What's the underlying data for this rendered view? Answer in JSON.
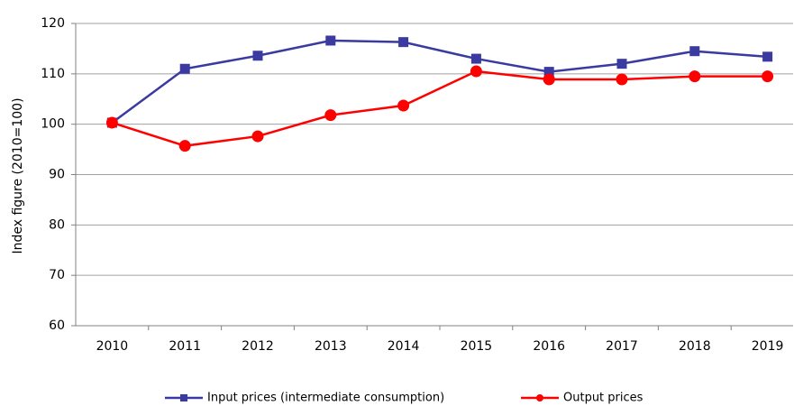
{
  "chart_data": {
    "type": "line",
    "y_label": "Index figure (2010=100)",
    "categories": [
      "2010",
      "2011",
      "2012",
      "2013",
      "2014",
      "2015",
      "2016",
      "2017",
      "2018",
      "2019"
    ],
    "series": [
      {
        "name": "Input prices (intermediate consumption)",
        "color": "#3a3aa0",
        "marker": "square",
        "values": [
          100.3,
          111,
          113.6,
          116.6,
          116.3,
          113,
          110.4,
          112,
          114.5,
          113.4
        ]
      },
      {
        "name": "Output prices",
        "color": "#ff0000",
        "marker": "circle",
        "values": [
          100.3,
          95.7,
          97.6,
          101.8,
          103.7,
          110.5,
          108.9,
          108.9,
          109.5,
          109.5
        ]
      }
    ],
    "ylim": [
      60,
      120
    ],
    "yticks": [
      60,
      70,
      80,
      90,
      100,
      110,
      120
    ],
    "grid": true,
    "legend": "bottom"
  }
}
